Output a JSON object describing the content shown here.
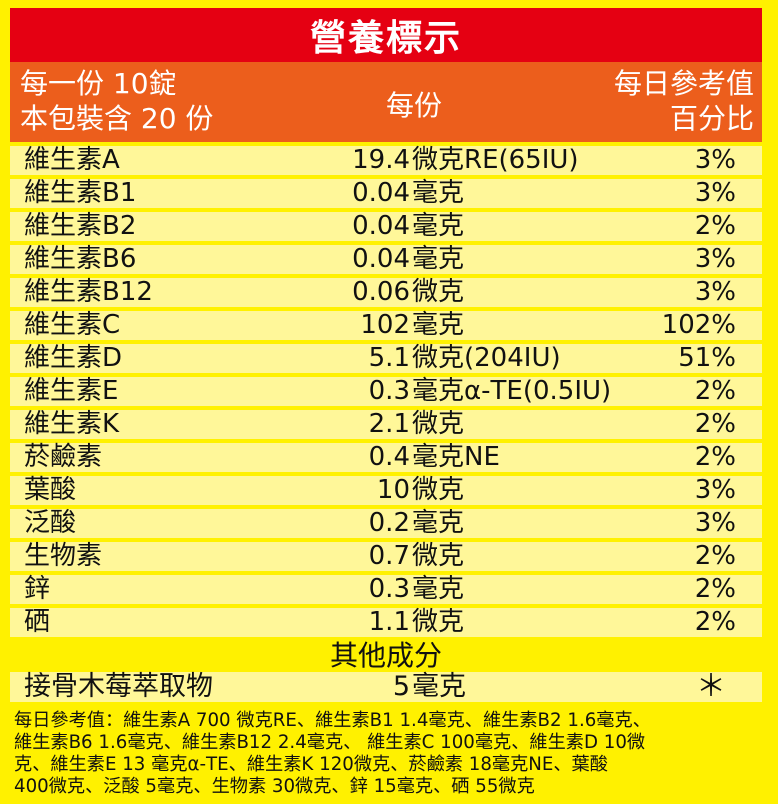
{
  "title": "營養標示",
  "header": {
    "serving_line1": "每一份 10錠",
    "serving_line2": "本包裝含 20 份",
    "per_serving": "每份",
    "dv_line1": "每日參考值",
    "dv_line2": "百分比"
  },
  "nutrients": [
    {
      "name": "維生素A",
      "amount": "19.4",
      "unit": "微克RE(65IU)",
      "pct": "3%"
    },
    {
      "name": "維生素B1",
      "amount": "0.04",
      "unit": "毫克",
      "pct": "3%"
    },
    {
      "name": "維生素B2",
      "amount": "0.04",
      "unit": "毫克",
      "pct": "2%"
    },
    {
      "name": "維生素B6",
      "amount": "0.04",
      "unit": "毫克",
      "pct": "3%"
    },
    {
      "name": "維生素B12",
      "amount": "0.06",
      "unit": "微克",
      "pct": "3%"
    },
    {
      "name": "維生素C",
      "amount": "102",
      "unit": "毫克",
      "pct": "102%"
    },
    {
      "name": "維生素D",
      "amount": "5.1",
      "unit": "微克(204IU)",
      "pct": "51%"
    },
    {
      "name": "維生素E",
      "amount": "0.3",
      "unit": "毫克α-TE(0.5IU)",
      "pct": "2%"
    },
    {
      "name": "維生素K",
      "amount": "2.1",
      "unit": "微克",
      "pct": "2%"
    },
    {
      "name": "菸鹼素",
      "amount": "0.4",
      "unit": "毫克NE",
      "pct": "2%"
    },
    {
      "name": "葉酸",
      "amount": "10",
      "unit": "微克",
      "pct": "3%"
    },
    {
      "name": "泛酸",
      "amount": "0.2",
      "unit": "毫克",
      "pct": "3%"
    },
    {
      "name": "生物素",
      "amount": "0.7",
      "unit": "微克",
      "pct": "2%"
    },
    {
      "name": "鋅",
      "amount": "0.3",
      "unit": "毫克",
      "pct": "2%"
    },
    {
      "name": "硒",
      "amount": "1.1",
      "unit": "微克",
      "pct": "2%"
    }
  ],
  "other": {
    "section_title": "其他成分",
    "name": "接骨木莓萃取物",
    "amount": "5",
    "unit": "毫克",
    "pct": "＊"
  },
  "footnote": [
    "每日參考值：維生素A 700 微克RE、維生素B1 1.4毫克、維生素B2 1.6毫克、",
    "維生素B6 1.6毫克、維生素B12 2.4毫克、 維生素C 100毫克、維生素D 10微",
    "克、維生素E 13 毫克α-TE、維生素K 120微克、菸鹼素 18毫克NE、葉酸",
    "400微克、泛酸 5毫克、生物素 30微克、鋅 15毫克、硒 55微克"
  ],
  "colors": {
    "background": "#fff100",
    "title_bar": "#e50012",
    "header_bar": "#ec5e1c",
    "row_band": "#fff799"
  }
}
